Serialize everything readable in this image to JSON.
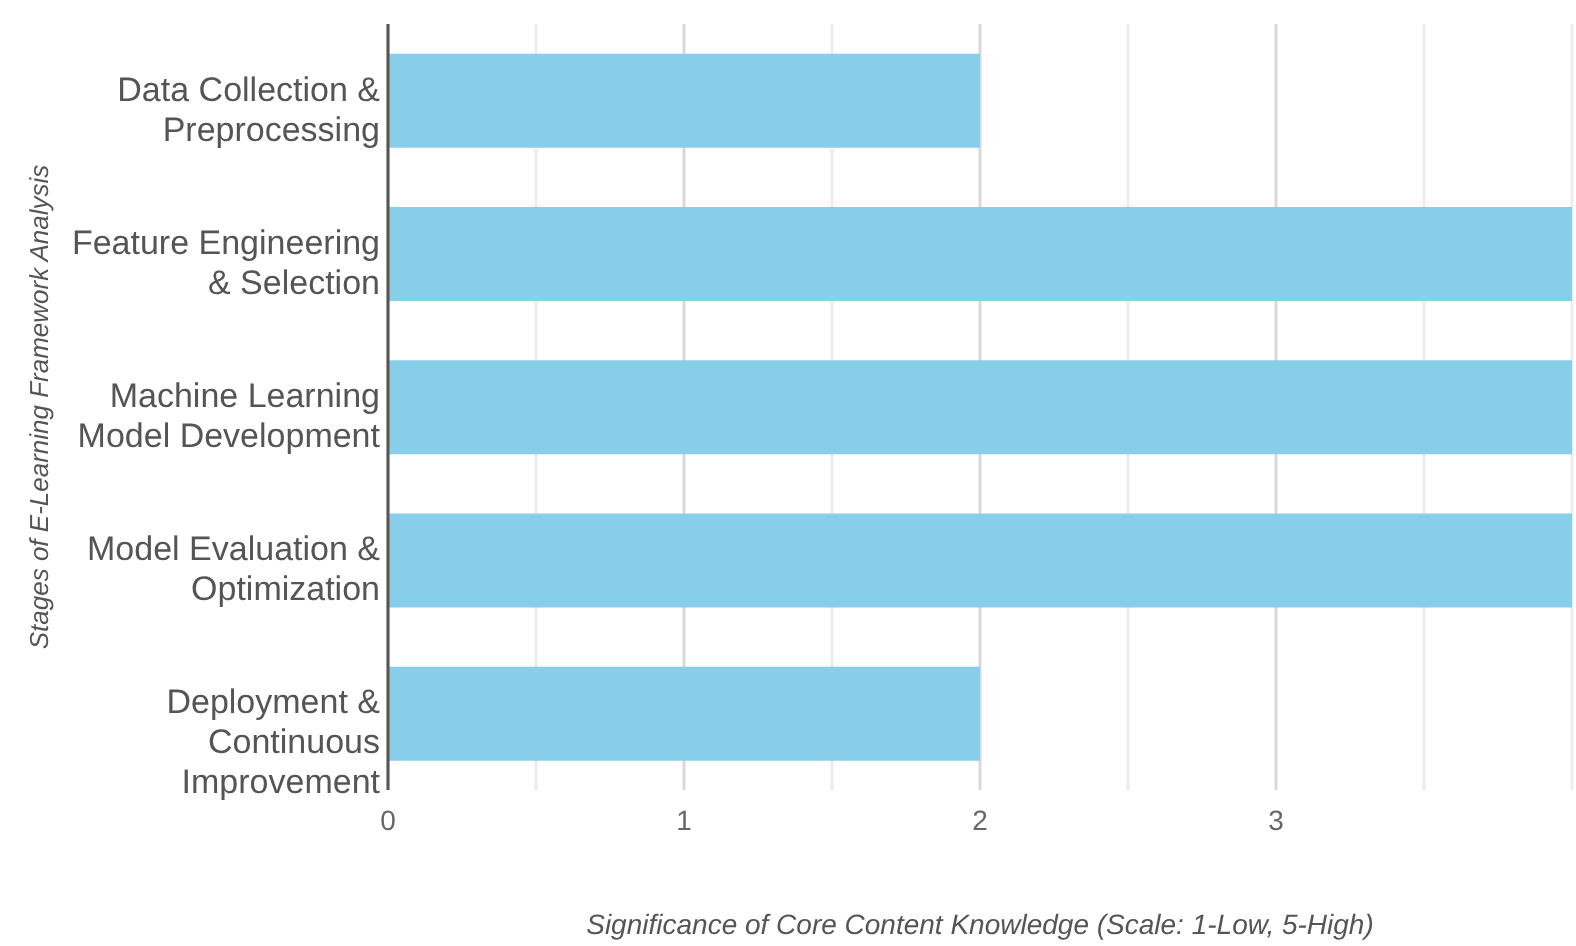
{
  "chart_data": {
    "type": "bar",
    "orientation": "horizontal",
    "categories": [
      "Data Collection & Preprocessing",
      "Feature Engineering & Selection",
      "Machine Learning Model Development",
      "Model Evaluation & Optimization",
      "Deployment & Continuous Improvement"
    ],
    "values": [
      2,
      4,
      4,
      4,
      2
    ],
    "color": "#87ceeb",
    "xlim": [
      0,
      4
    ],
    "xticks": [
      0,
      {
        "value": 0.5,
        "label": null
      },
      1,
      {
        "value": 1.5,
        "label": null
      },
      2,
      {
        "value": 2.5,
        "label": null
      },
      3,
      {
        "value": 3.5,
        "label": null
      },
      {
        "value": 4,
        "label": null
      }
    ],
    "xlabel": "Significance of Core Content Knowledge (Scale: 1-Low, 5-High)",
    "ylabel": "Stages of E-Learning Framework Analysis",
    "grid": "x"
  }
}
